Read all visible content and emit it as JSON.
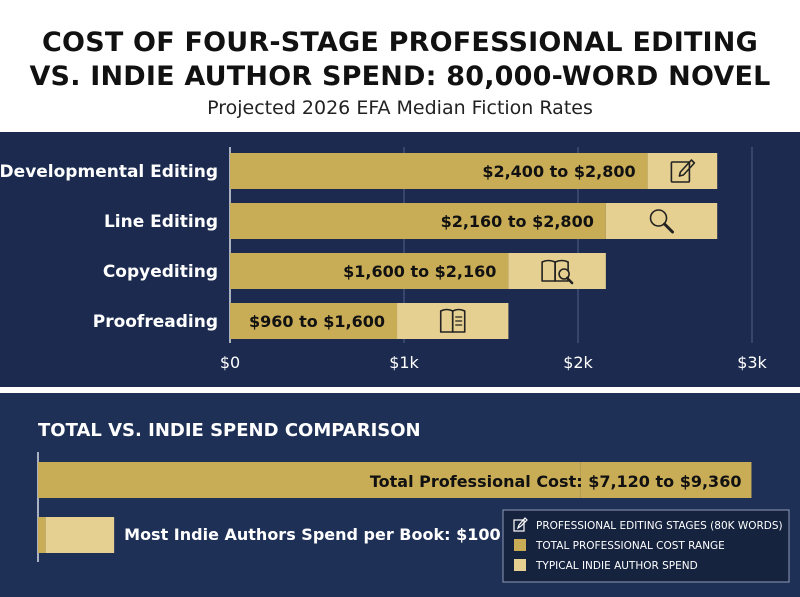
{
  "header": {
    "title_line1": "COST OF FOUR-STAGE PROFESSIONAL EDITING",
    "title_line2": "VS. INDIE AUTHOR SPEND: 80,000-WORD NOVEL",
    "subtitle": "Projected 2026 EFA Median Fiction Rates"
  },
  "colors": {
    "professional": "#c9ad56",
    "indie": "#e6d091",
    "panel_top": "#1b2a4e",
    "panel_bottom": "#1f3057",
    "text_light": "#ffffff",
    "text_dark": "#111111"
  },
  "chart_data": [
    {
      "type": "bar",
      "orientation": "horizontal",
      "categories": [
        "Developmental Editing",
        "Line Editing",
        "Copyediting",
        "Proofreading"
      ],
      "series": [
        {
          "values": [
            2400,
            2160,
            1600,
            960
          ]
        },
        {
          "values": [
            2800,
            2800,
            2160,
            1600
          ]
        }
      ],
      "data_labels": [
        "$2,400 to $2,800",
        "$2,160 to $2,800",
        "$1,600 to $2,160",
        "$960 to $1,600"
      ],
      "icons": [
        "edit-icon",
        "magnifier-icon",
        "book-search-icon",
        "book-icon"
      ],
      "x_ticks": [
        0,
        1000,
        2000,
        3000
      ],
      "x_tick_labels": [
        "$0",
        "$1k",
        "$2k",
        "$3k"
      ],
      "xlim": [
        0,
        3000
      ],
      "grid": true
    },
    {
      "type": "bar",
      "orientation": "horizontal",
      "title": "TOTAL VS. INDIE SPEND COMPARISON",
      "categories": [
        "Total Professional Cost",
        "Most Indie Authors Spend per Book"
      ],
      "series": [
        {
          "values": [
            7120,
            100
          ]
        },
        {
          "values": [
            9360,
            999
          ]
        }
      ],
      "data_labels": [
        "Total Professional Cost: $7,120 to $9,360",
        "Most Indie Authors Spend per Book: $100 to $999"
      ],
      "xlim": [
        0,
        9800
      ]
    }
  ],
  "legend": {
    "placement": "bottom-right",
    "items": [
      {
        "label": "PROFESSIONAL EDITING STAGES (80K WORDS)",
        "icon": "edit-icon"
      },
      {
        "label": "TOTAL PROFESSIONAL COST RANGE",
        "swatch": "#c9ad56"
      },
      {
        "label": "TYPICAL INDIE AUTHOR SPEND",
        "swatch": "#e6d091"
      }
    ]
  }
}
